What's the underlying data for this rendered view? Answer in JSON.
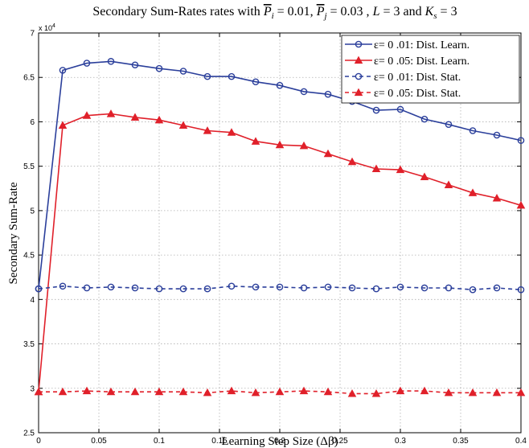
{
  "chart_data": {
    "type": "line",
    "title": {
      "prefix": "Secondary Sum-Rates rates with ",
      "pi_symbol": "P",
      "pi_sub": "i",
      "pi_value": " = 0.01, ",
      "pj_symbol": "P",
      "pj_sub": "j",
      "pj_value": " = 0.03 , ",
      "l_symbol": "L",
      "l_value": " = 3  and ",
      "ks_symbol": "K",
      "ks_sub": "s",
      "ks_value": " = 3"
    },
    "xlabel": "Learning Step Size (Δβ)",
    "ylabel": "Secondary  Sum-Rate",
    "y_multiplier_base": "x 10",
    "y_multiplier_exp": "4",
    "xlim": [
      0,
      0.4
    ],
    "ylim": [
      25000,
      70000
    ],
    "x_ticks": [
      0,
      0.05,
      0.1,
      0.15,
      0.2,
      0.25,
      0.3,
      0.35,
      0.4
    ],
    "x_tick_labels": [
      "0",
      "0.05",
      "0.1",
      "0.15",
      "0.2",
      "0.25",
      "0.3",
      "0.35",
      "0.4"
    ],
    "y_ticks": [
      25000,
      30000,
      35000,
      40000,
      45000,
      50000,
      55000,
      60000,
      65000,
      70000
    ],
    "y_tick_labels": [
      "2.5",
      "3",
      "3.5",
      "4",
      "4.5",
      "5",
      "5.5",
      "6",
      "6.5",
      "7"
    ],
    "grid": true,
    "legend_position": "top-right",
    "x": [
      0,
      0.02,
      0.04,
      0.06,
      0.08,
      0.1,
      0.12,
      0.14,
      0.16,
      0.18,
      0.2,
      0.22,
      0.24,
      0.26,
      0.28,
      0.3,
      0.32,
      0.34,
      0.36,
      0.38,
      0.4
    ],
    "series": [
      {
        "name": "ε= 0 .01: Dist. Learn.",
        "color": "#2b3f9b",
        "marker": "circle",
        "dash": "solid",
        "values": [
          41200,
          65800,
          66600,
          66800,
          66400,
          66000,
          65700,
          65100,
          65100,
          64500,
          64100,
          63400,
          63100,
          62300,
          61300,
          61400,
          60300,
          59700,
          59000,
          58500,
          57900
        ]
      },
      {
        "name": "ε= 0 .05: Dist. Learn.",
        "color": "#e0202a",
        "marker": "triangle",
        "dash": "solid",
        "values": [
          29600,
          59600,
          60700,
          60900,
          60500,
          60200,
          59600,
          59000,
          58800,
          57800,
          57400,
          57300,
          56400,
          55500,
          54700,
          54600,
          53800,
          52900,
          52000,
          51400,
          50600
        ]
      },
      {
        "name": "ε= 0 .01: Dist. Stat.",
        "color": "#2b3f9b",
        "marker": "circle",
        "dash": "dashed",
        "values": [
          41200,
          41500,
          41300,
          41400,
          41300,
          41200,
          41200,
          41200,
          41500,
          41400,
          41400,
          41300,
          41400,
          41300,
          41200,
          41400,
          41300,
          41300,
          41100,
          41300,
          41100
        ]
      },
      {
        "name": "ε= 0 .05: Dist. Stat.",
        "color": "#e0202a",
        "marker": "triangle",
        "dash": "dashed",
        "values": [
          29600,
          29600,
          29700,
          29600,
          29600,
          29600,
          29600,
          29500,
          29700,
          29500,
          29600,
          29700,
          29600,
          29400,
          29400,
          29700,
          29700,
          29500,
          29500,
          29500,
          29500
        ]
      }
    ]
  }
}
